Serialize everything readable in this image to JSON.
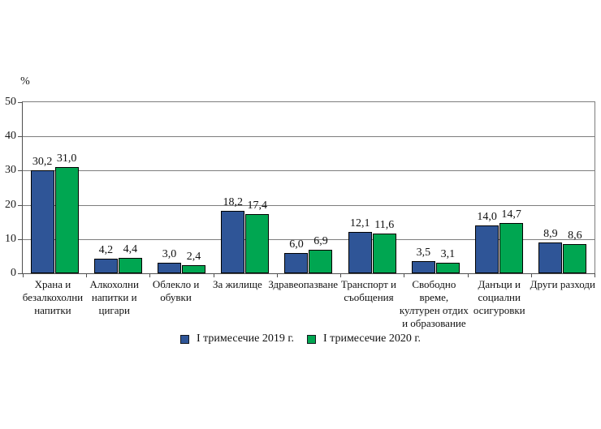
{
  "chart_data": {
    "type": "bar",
    "y_axis_unit": "%",
    "categories": [
      [
        "Храна и",
        "безалкохолни",
        "напитки"
      ],
      [
        "Алкохолни",
        "напитки и",
        "цигари"
      ],
      [
        "Облекло и",
        "обувки"
      ],
      [
        "За жилище"
      ],
      [
        "Здравеопазване"
      ],
      [
        "Транспорт и",
        "съобщения"
      ],
      [
        "Свободно",
        "време,",
        "културен отдих",
        "и образование"
      ],
      [
        "Данъци и",
        "социални",
        "осигуровки"
      ],
      [
        "Други разходи"
      ]
    ],
    "series": [
      {
        "name": "I тримесечие 2019 г.",
        "color": "#2F5597",
        "values": [
          30.2,
          4.2,
          3.0,
          18.2,
          6.0,
          12.1,
          3.5,
          14.0,
          8.9
        ]
      },
      {
        "name": "I  тримесечие 2020 г.",
        "color": "#00A651",
        "values": [
          31.0,
          4.4,
          2.4,
          17.4,
          6.9,
          11.6,
          3.1,
          14.7,
          8.6
        ]
      }
    ],
    "ylim": [
      0,
      50
    ],
    "yticks": [
      0,
      10,
      20,
      30,
      40,
      50
    ],
    "grid": true,
    "legend_position": "bottom",
    "decimal_separator": ","
  }
}
